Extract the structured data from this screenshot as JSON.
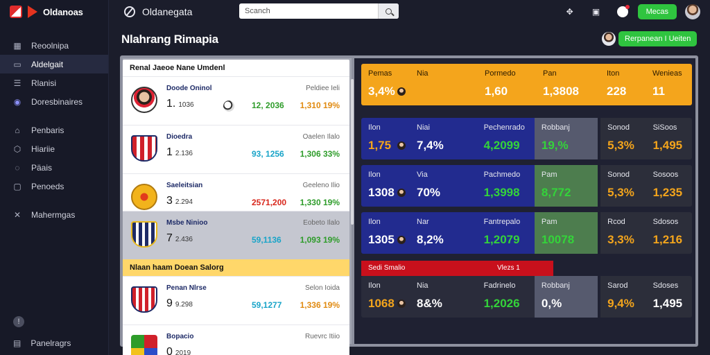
{
  "app": {
    "logo_text": "Oldanoas",
    "title": "Oldanegata"
  },
  "search": {
    "placeholder": "Scanch"
  },
  "topbar": {
    "menu_button": "Mecas"
  },
  "sidebar": {
    "items": [
      {
        "label": "Reoolnipa",
        "icon": "grid-icon"
      },
      {
        "label": "Aldelgait",
        "icon": "box-icon",
        "active": true
      },
      {
        "label": "Rlanisi",
        "icon": "list-icon"
      },
      {
        "label": "Doresbinaires",
        "icon": "shield-icon"
      },
      {
        "label": "Penbaris",
        "icon": "trophy-icon"
      },
      {
        "label": "Hiariie",
        "icon": "cube-icon"
      },
      {
        "label": "Päais",
        "icon": "chat-icon"
      },
      {
        "label": "Penoeds",
        "icon": "monitor-icon"
      },
      {
        "label": "Mahermgas",
        "icon": "tools-icon"
      }
    ],
    "footer_label": "Panelragrs"
  },
  "page": {
    "title": "Nlahrang Rimapia",
    "action_button": "Rerpanean I Ueiten"
  },
  "matches_top": {
    "header": "Renal Jaeoe Nane Umdenl",
    "rows": [
      {
        "team": "Doode Oninol",
        "score": "1.",
        "score_small": "1036",
        "status": "Peldiee Ieli",
        "odd1": "12, 2036",
        "odd2": "1,310 19%",
        "odd1_color": "#2e9c2a",
        "odd2_color": "#e08a10",
        "crest": "person"
      },
      {
        "team": "Dioedra",
        "score": "1",
        "score_small": "2.136",
        "status": "Oaelen Ilalo",
        "odd1": "93, 1256",
        "odd2": "1,306 33%",
        "odd1_color": "#19a4c8",
        "odd2_color": "#2e9c2a",
        "crest": "stripes"
      },
      {
        "team": "Saeleitsian",
        "score": "3",
        "score_small": "2.294",
        "status": "Geeleno Ilio",
        "odd1": "2571,200",
        "odd2": "1,330 19%",
        "odd1_color": "#d8261b",
        "odd2_color": "#2e9c2a",
        "crest": "lion"
      },
      {
        "team": "Msbe Ninioo",
        "score": "7",
        "score_small": "2.436",
        "status": "Eobeto Ilalo",
        "odd1": "59,1136",
        "odd2": "1,093 19%",
        "odd1_color": "#19a4c8",
        "odd2_color": "#2e9c2a",
        "crest": "atletico",
        "dim": true
      }
    ]
  },
  "matches_bottom": {
    "header": "Nlaan haam Doean Salorg",
    "rows": [
      {
        "team": "Penan Nlrse",
        "score": "9",
        "score_small": "9.298",
        "status": "Selon Ioida",
        "odd1": "59,1277",
        "odd2": "1,336 19%",
        "odd1_color": "#19a4c8",
        "odd2_color": "#e08a10",
        "crest": "atletico"
      },
      {
        "team": "Bopacio",
        "score": "0",
        "score_small": "2019",
        "status": "Ruevrc Itiio",
        "odd1": "",
        "odd2": "",
        "odd1_color": "#19a4c8",
        "odd2_color": "#2e9c2a",
        "crest": "cube"
      }
    ]
  },
  "stats": {
    "rows": [
      {
        "theme": "orange",
        "segments": [
          {
            "label": "Pemas",
            "value": "3,4%",
            "extra_label": "Nia"
          },
          {
            "label": "Pormedo",
            "value": "1,60"
          },
          {
            "label": "Pan",
            "value": "1,3808"
          },
          {
            "label": "Iton",
            "value": "228"
          },
          {
            "label": "Wenieas",
            "value": "11"
          }
        ]
      },
      {
        "theme": "blue",
        "segments": [
          {
            "label": "Ilon",
            "value": "1,75",
            "extra_label": "Niai",
            "extra_value": "7,4%"
          },
          {
            "label": "Pechenrado",
            "value": "4,2099"
          },
          {
            "label": "Robbanj",
            "value": "19,%"
          },
          {
            "label": "Sonod",
            "value": "5,3%"
          },
          {
            "label": "SiSoos",
            "value": "1,495"
          }
        ]
      },
      {
        "theme": "blue-green",
        "segments": [
          {
            "label": "Ilon",
            "value": "1308",
            "extra_label": "Via",
            "extra_value": "70%"
          },
          {
            "label": "Pachmedo",
            "value": "1,3998"
          },
          {
            "label": "Pam",
            "value": "8,772"
          },
          {
            "label": "Sonod",
            "value": "5,3%"
          },
          {
            "label": "Sosoos",
            "value": "1,235"
          }
        ]
      },
      {
        "theme": "blue-green",
        "segments": [
          {
            "label": "Ilon",
            "value": "1305",
            "extra_label": "Nar",
            "extra_value": "8,2%"
          },
          {
            "label": "Fantrepalo",
            "value": "1,2079"
          },
          {
            "label": "Pam",
            "value": "10078"
          },
          {
            "label": "Rcod",
            "value": "3,3%"
          },
          {
            "label": "Sdosos",
            "value": "1,216"
          }
        ]
      }
    ],
    "red_bar": {
      "left": "Sedi Smalio",
      "right": "Vlezs 1"
    },
    "bottom_row": {
      "theme": "dark",
      "segments": [
        {
          "label": "Ilon",
          "value": "1068",
          "extra_label": "Nia",
          "extra_value": "8&%"
        },
        {
          "label": "Fadrinelo",
          "value": "1,2026"
        },
        {
          "label": "Robbanj",
          "value": "0,%"
        },
        {
          "label": "Sarod",
          "value": "9,4%"
        },
        {
          "label": "Sdoses",
          "value": "1,495"
        }
      ]
    }
  },
  "colors": {
    "accent_green": "#2fc43f",
    "orange": "#f4a51c",
    "navy": "#222b8f",
    "red": "#c8101c"
  }
}
